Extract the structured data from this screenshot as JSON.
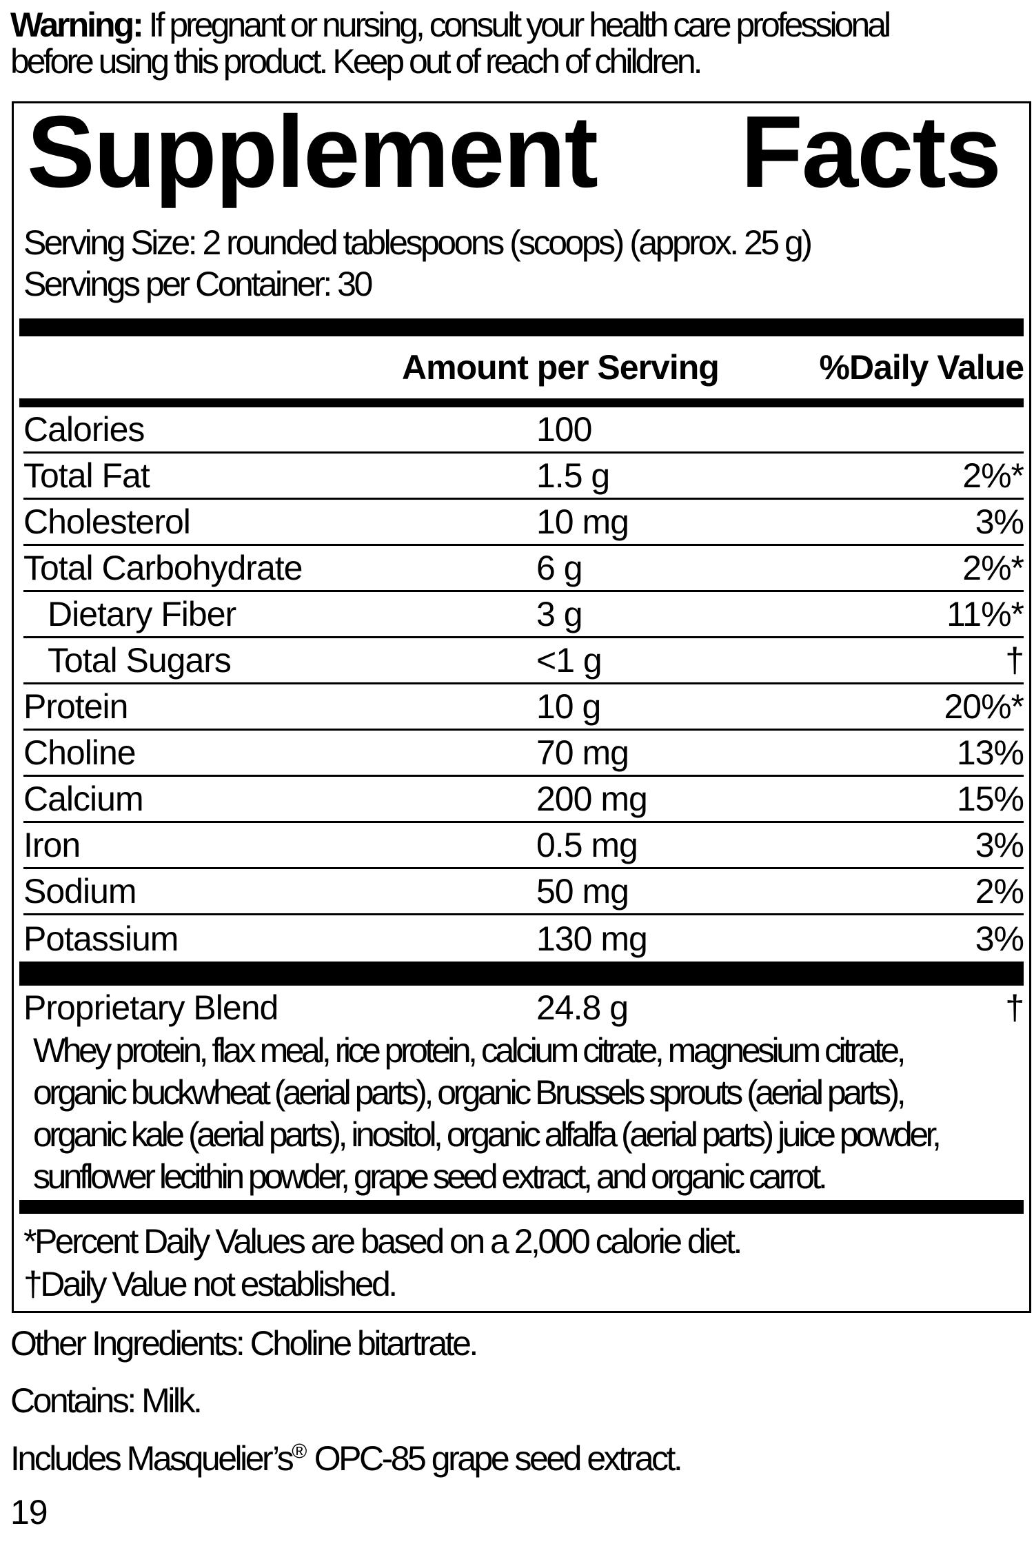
{
  "colors": {
    "text": "#000000",
    "background": "#ffffff"
  },
  "warning": {
    "label": "Warning:",
    "line1": " If pregnant or nursing, consult your health care professional",
    "line2": "before using this product. Keep out of reach of children."
  },
  "facts": {
    "title_left": "Supplement",
    "title_right": "Facts",
    "serving_size": "Serving Size: 2 rounded tablespoons (scoops) (approx. 25 g)",
    "servings_per_container": "Servings per Container: 30",
    "header": {
      "amount": "Amount per Serving",
      "daily_value": "%Daily Value"
    },
    "rows": [
      {
        "name": "Calories",
        "amount": "100",
        "dv": ""
      },
      {
        "name": "Total Fat",
        "amount": "1.5 g",
        "dv": "2%*"
      },
      {
        "name": "Cholesterol",
        "amount": "10 mg",
        "dv": "3%"
      },
      {
        "name": "Total Carbohydrate",
        "amount": "6 g",
        "dv": "2%*"
      },
      {
        "name": "Dietary Fiber",
        "amount": "3 g",
        "dv": "11%*"
      },
      {
        "name": "Total Sugars",
        "amount": "<1 g",
        "dv": "†"
      },
      {
        "name": "Protein",
        "amount": "10 g",
        "dv": "20%*"
      },
      {
        "name": "Choline",
        "amount": "70 mg",
        "dv": "13%"
      },
      {
        "name": "Calcium",
        "amount": "200 mg",
        "dv": "15%"
      },
      {
        "name": "Iron",
        "amount": "0.5 mg",
        "dv": "3%"
      },
      {
        "name": "Sodium",
        "amount": "50 mg",
        "dv": "2%"
      },
      {
        "name": "Potassium",
        "amount": "130 mg",
        "dv": "3%"
      }
    ],
    "blend": {
      "name": "Proprietary Blend",
      "amount": "24.8 g",
      "dv": "†",
      "lines": [
        "Whey protein, flax meal, rice protein, calcium citrate, magnesium citrate,",
        "organic buckwheat (aerial parts), organic Brussels sprouts (aerial parts),",
        "organic kale (aerial parts), inositol, organic alfalfa (aerial parts) juice powder,",
        "sunflower lecithin powder, grape seed extract, and organic carrot."
      ]
    },
    "footnotes": [
      "*Percent Daily Values are based on a 2,000 calorie diet.",
      "†Daily Value not established."
    ]
  },
  "bottom": {
    "other_ingredients": "Other Ingredients: Choline bitartrate.",
    "contains": "Contains: Milk.",
    "includes_pre": "Includes Masquelier’s",
    "includes_reg": "®",
    "includes_post": " OPC-85 grape seed extract.",
    "page_number": "19"
  }
}
